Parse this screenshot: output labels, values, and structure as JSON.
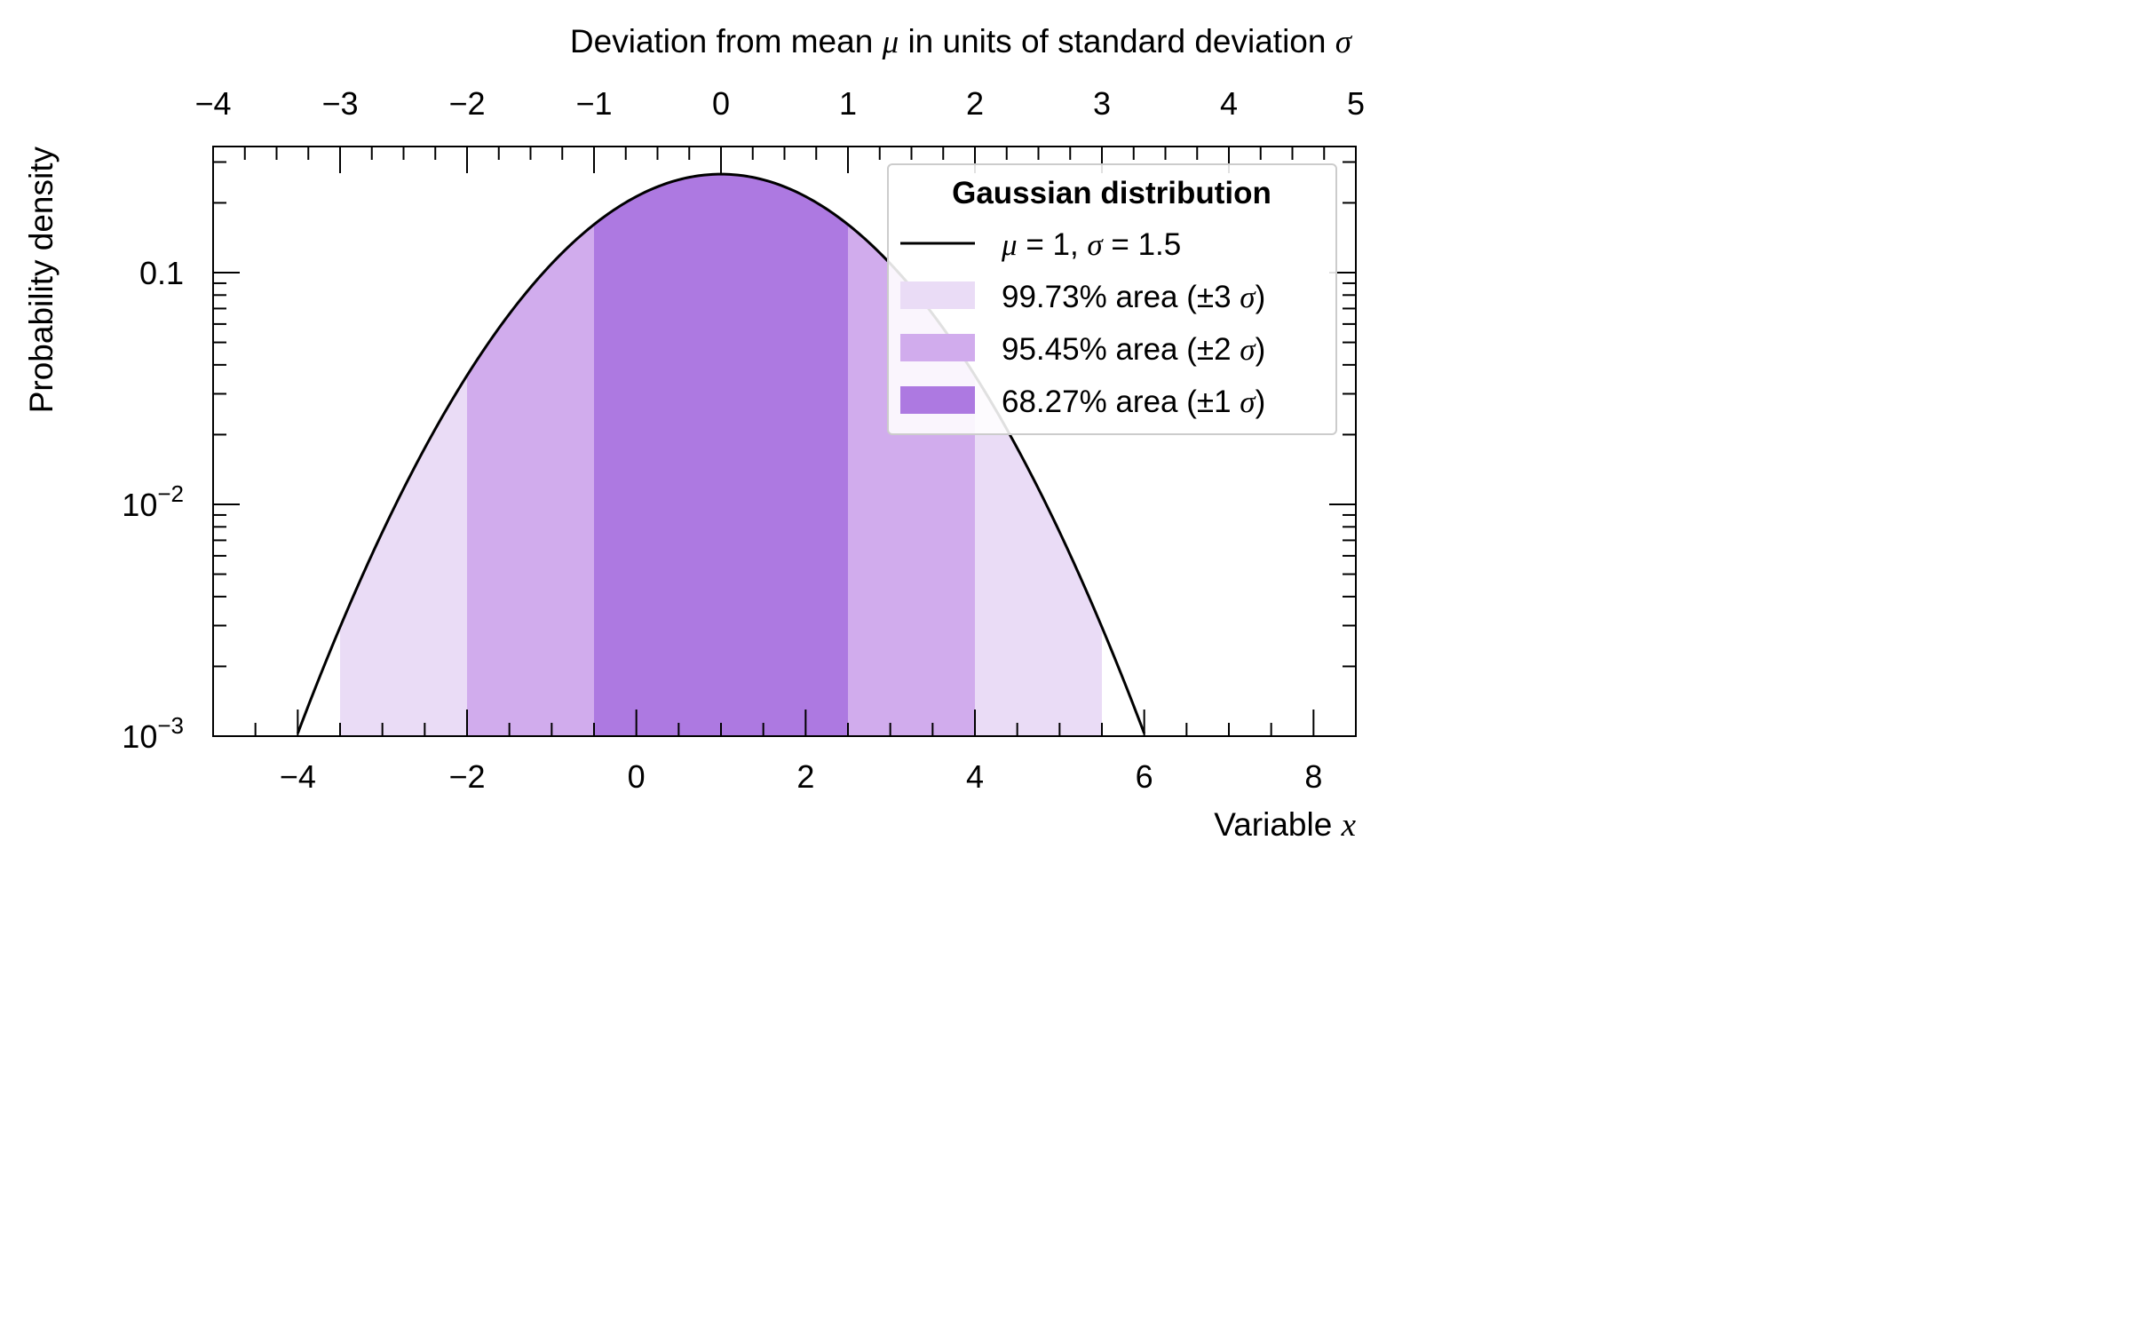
{
  "chart_data": {
    "type": "area",
    "title": "",
    "xlabel_bottom": "Variable",
    "xlabel_bottom_var": "x",
    "xlabel_top": "Deviation from mean",
    "xlabel_top_mu": "μ",
    "xlabel_top_mid": "in units of standard deviation",
    "xlabel_top_sigma": "σ",
    "ylabel": "Probability density",
    "x_scale": "linear",
    "y_scale": "log",
    "xlim": [
      -5,
      8.5
    ],
    "ylim": [
      0.001,
      0.35
    ],
    "x_ticks": [
      -4,
      -2,
      0,
      2,
      4,
      6,
      8
    ],
    "x_tick_labels": [
      "−4",
      "−2",
      "0",
      "2",
      "4",
      "6",
      "8"
    ],
    "top_ticks": [
      -4,
      -3,
      -2,
      -1,
      0,
      1,
      2,
      3,
      4,
      5
    ],
    "top_tick_labels": [
      "−4",
      "−3",
      "−2",
      "−1",
      "0",
      "1",
      "2",
      "3",
      "4",
      "5"
    ],
    "y_tick_labels": [
      {
        "value": 0.1,
        "base": "0.1",
        "exp": ""
      },
      {
        "value": 0.01,
        "base": "10",
        "exp": "−2"
      },
      {
        "value": 0.001,
        "base": "10",
        "exp": "−3"
      }
    ],
    "gaussian": {
      "mu": 1,
      "sigma": 1.5
    },
    "curve_domain": [
      -4,
      6
    ],
    "bands": [
      {
        "name": "99.73 % area (± 3 σ)",
        "from": -3.5,
        "to": 5.5,
        "color": "#eadcf6"
      },
      {
        "name": "95.45 % area (± 2 σ)",
        "from": -2,
        "to": 4,
        "color": "#d1aced"
      },
      {
        "name": "68.27 % area (± 1 σ)",
        "from": -0.5,
        "to": 2.5,
        "color": "#ad79e1"
      }
    ],
    "legend": {
      "title": "Gaussian distribution",
      "position": "top-right",
      "line_label": {
        "mu": "μ",
        "eq1": "= 1,",
        "sigma": "σ",
        "eq2": "= 1.5"
      },
      "entries": [
        {
          "pct": "99.73",
          "unit": "%",
          "text": "area (±",
          "n": "3",
          "sigma": "σ",
          "close": ")"
        },
        {
          "pct": "95.45",
          "unit": "%",
          "text": "area (±",
          "n": "2",
          "sigma": "σ",
          "close": ")"
        },
        {
          "pct": "68.27",
          "unit": "%",
          "text": "area (±",
          "n": "1",
          "sigma": "σ",
          "close": ")"
        }
      ]
    }
  }
}
